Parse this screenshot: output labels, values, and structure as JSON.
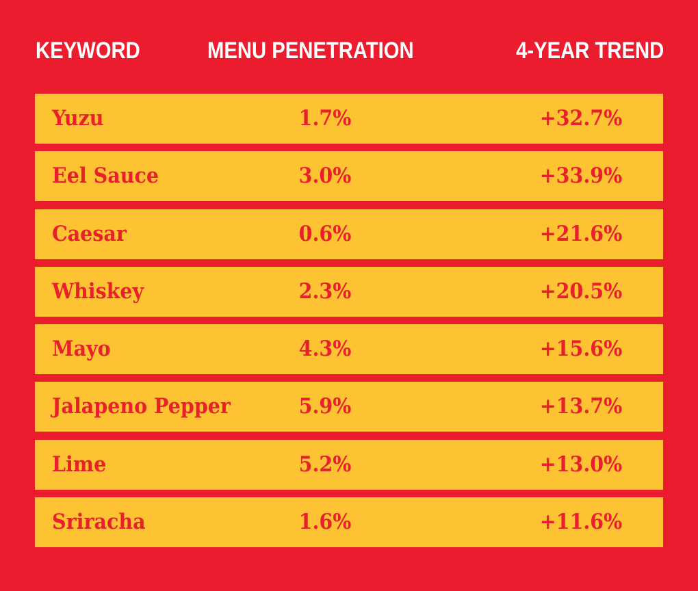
{
  "chart_data": {
    "type": "table",
    "columns": [
      "KEYWORD",
      "MENU PENETRATION",
      "4-YEAR TREND"
    ],
    "rows": [
      {
        "keyword": "Yuzu",
        "penetration": "1.7%",
        "trend": "+32.7%"
      },
      {
        "keyword": "Eel Sauce",
        "penetration": "3.0%",
        "trend": "+33.9%"
      },
      {
        "keyword": "Caesar",
        "penetration": "0.6%",
        "trend": "+21.6%"
      },
      {
        "keyword": "Whiskey",
        "penetration": "2.3%",
        "trend": "+20.5%"
      },
      {
        "keyword": "Mayo",
        "penetration": "4.3%",
        "trend": "+15.6%"
      },
      {
        "keyword": "Jalapeno Pepper",
        "penetration": "5.9%",
        "trend": "+13.7%"
      },
      {
        "keyword": "Lime",
        "penetration": "5.2%",
        "trend": "+13.0%"
      },
      {
        "keyword": "Sriracha",
        "penetration": "1.6%",
        "trend": "+11.6%"
      }
    ]
  },
  "colors": {
    "background": "#ec1c2f",
    "row_fill": "#fec332",
    "header_text": "#ffffff",
    "cell_text": "#e8202c"
  }
}
